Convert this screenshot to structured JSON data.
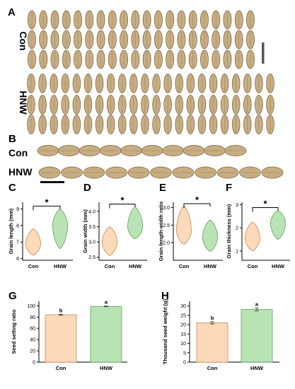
{
  "colors": {
    "con_fill": "#fcd9b8",
    "con_stroke": "#c98b5a",
    "hnw_fill": "#b9e3b5",
    "hnw_stroke": "#5aa45a",
    "seed_body": "#c7ad82",
    "seed_dark": "#7a5e3c",
    "text": "#000000"
  },
  "photos": {
    "panel_a": {
      "letter": "A",
      "rows": [
        {
          "label": "Con",
          "rows_of_seeds": 3
        },
        {
          "label": "HNW",
          "rows_of_seeds": 3
        }
      ],
      "scale_bar": "vertical"
    },
    "panel_b": {
      "letter": "B",
      "rows": [
        {
          "label": "Con",
          "seed_count": 10
        },
        {
          "label": "HNW",
          "seed_count": 11
        }
      ],
      "scale_bar": "horizontal"
    }
  },
  "chart_data": [
    {
      "panel": "C",
      "type": "violin",
      "categories": [
        "Con",
        "HNW"
      ],
      "ylabel": "Grain length (mm)",
      "yticks": [
        6,
        7,
        8,
        9
      ],
      "ylim": [
        5.9,
        9.4
      ],
      "distributions": [
        {
          "category": "Con",
          "min": 6.2,
          "max": 7.8,
          "mode": 6.9
        },
        {
          "category": "HNW",
          "min": 6.6,
          "max": 9.0,
          "mode": 8.0
        }
      ],
      "significance": "*"
    },
    {
      "panel": "D",
      "type": "violin",
      "categories": [
        "Con",
        "HNW"
      ],
      "ylabel": "Grain width (mm)",
      "yticks": [
        2.5,
        3.0,
        3.5,
        4.0
      ],
      "ylim": [
        2.4,
        4.3
      ],
      "distributions": [
        {
          "category": "Con",
          "min": 2.55,
          "max": 3.5,
          "mode": 3.0
        },
        {
          "category": "HNW",
          "min": 3.1,
          "max": 4.15,
          "mode": 3.5
        }
      ],
      "significance": "*"
    },
    {
      "panel": "E",
      "type": "violin",
      "categories": [
        "Con",
        "HNW"
      ],
      "ylabel": "Grain length-width ratio",
      "yticks": [
        2.0,
        2.5,
        3.0
      ],
      "ylim": [
        1.5,
        3.15
      ],
      "distributions": [
        {
          "category": "Con",
          "min": 1.95,
          "max": 3.05,
          "mode": 2.35
        },
        {
          "category": "HNW",
          "min": 1.75,
          "max": 2.65,
          "mode": 2.15
        }
      ],
      "significance": "*"
    },
    {
      "panel": "F",
      "type": "violin",
      "categories": [
        "Con",
        "HNW"
      ],
      "ylabel": "Grain thickness (mm)",
      "yticks": [
        1,
        2,
        3
      ],
      "ylim": [
        0.6,
        3.1
      ],
      "distributions": [
        {
          "category": "Con",
          "min": 1.0,
          "max": 2.25,
          "mode": 1.55
        },
        {
          "category": "HNW",
          "min": 1.5,
          "max": 2.75,
          "mode": 2.2
        }
      ],
      "significance": "*"
    },
    {
      "panel": "G",
      "type": "bar",
      "categories": [
        "Con",
        "HNW"
      ],
      "values": [
        84,
        99
      ],
      "errors": [
        0.8,
        0.6
      ],
      "letters": [
        "b",
        "a"
      ],
      "ylabel": "Seed setting ratio",
      "yticks": [
        0,
        20,
        40,
        60,
        80,
        100
      ],
      "ylim": [
        0,
        108
      ]
    },
    {
      "panel": "H",
      "type": "bar",
      "categories": [
        "Con",
        "HNW"
      ],
      "values": [
        21,
        28.2
      ],
      "errors": [
        0.6,
        0.8
      ],
      "letters": [
        "b",
        "a"
      ],
      "ylabel": "Thousand seed weight (g)",
      "yticks": [
        0,
        5,
        10,
        15,
        20,
        25,
        30
      ],
      "ylim": [
        0,
        32.5
      ]
    }
  ]
}
